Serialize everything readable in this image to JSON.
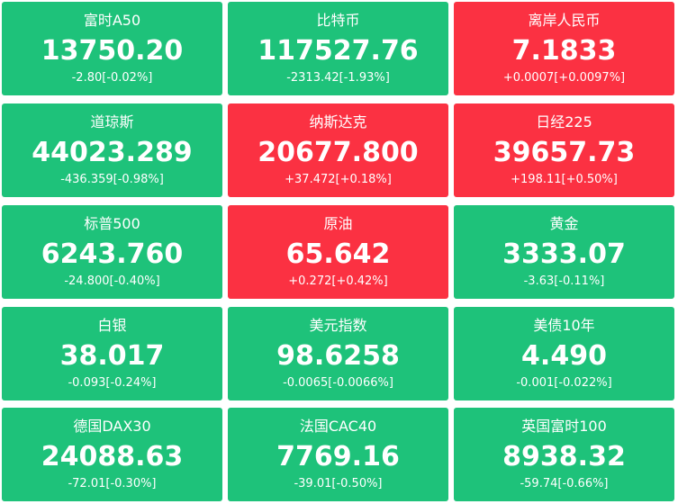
{
  "tiles": [
    {
      "name": "富时A50",
      "price": "13750.20",
      "change": "-2.80[-0.02%]",
      "color": "#1ec27a"
    },
    {
      "name": "比特币",
      "price": "117527.76",
      "change": "-2313.42[-1.93%]",
      "color": "#1ec27a"
    },
    {
      "name": "离岸人民币",
      "price": "7.1833",
      "change": "+0.0007[+0.0097%]",
      "color": "#fb3142"
    },
    {
      "name": "道琼斯",
      "price": "44023.289",
      "change": "-436.359[-0.98%]",
      "color": "#1ec27a"
    },
    {
      "name": "纳斯达克",
      "price": "20677.800",
      "change": "+37.472[+0.18%]",
      "color": "#fb3142"
    },
    {
      "name": "日经225",
      "price": "39657.73",
      "change": "+198.11[+0.50%]",
      "color": "#fb3142"
    },
    {
      "name": "标普500",
      "price": "6243.760",
      "change": "-24.800[-0.40%]",
      "color": "#1ec27a"
    },
    {
      "name": "原油",
      "price": "65.642",
      "change": "+0.272[+0.42%]",
      "color": "#fb3142"
    },
    {
      "name": "黄金",
      "price": "3333.07",
      "change": "-3.63[-0.11%]",
      "color": "#1ec27a"
    },
    {
      "name": "白银",
      "price": "38.017",
      "change": "-0.093[-0.24%]",
      "color": "#1ec27a"
    },
    {
      "name": "美元指数",
      "price": "98.6258",
      "change": "-0.0065[-0.0066%]",
      "color": "#1ec27a"
    },
    {
      "name": "美债10年",
      "price": "4.490",
      "change": "-0.001[-0.022%]",
      "color": "#1ec27a"
    },
    {
      "name": "德国DAX30",
      "price": "24088.63",
      "change": "-72.01[-0.30%]",
      "color": "#1ec27a"
    },
    {
      "name": "法国CAC40",
      "price": "7769.16",
      "change": "-39.01[-0.50%]",
      "color": "#1ec27a"
    },
    {
      "name": "英国富时100",
      "price": "8938.32",
      "change": "-59.74[-0.66%]",
      "color": "#1ec27a"
    }
  ]
}
